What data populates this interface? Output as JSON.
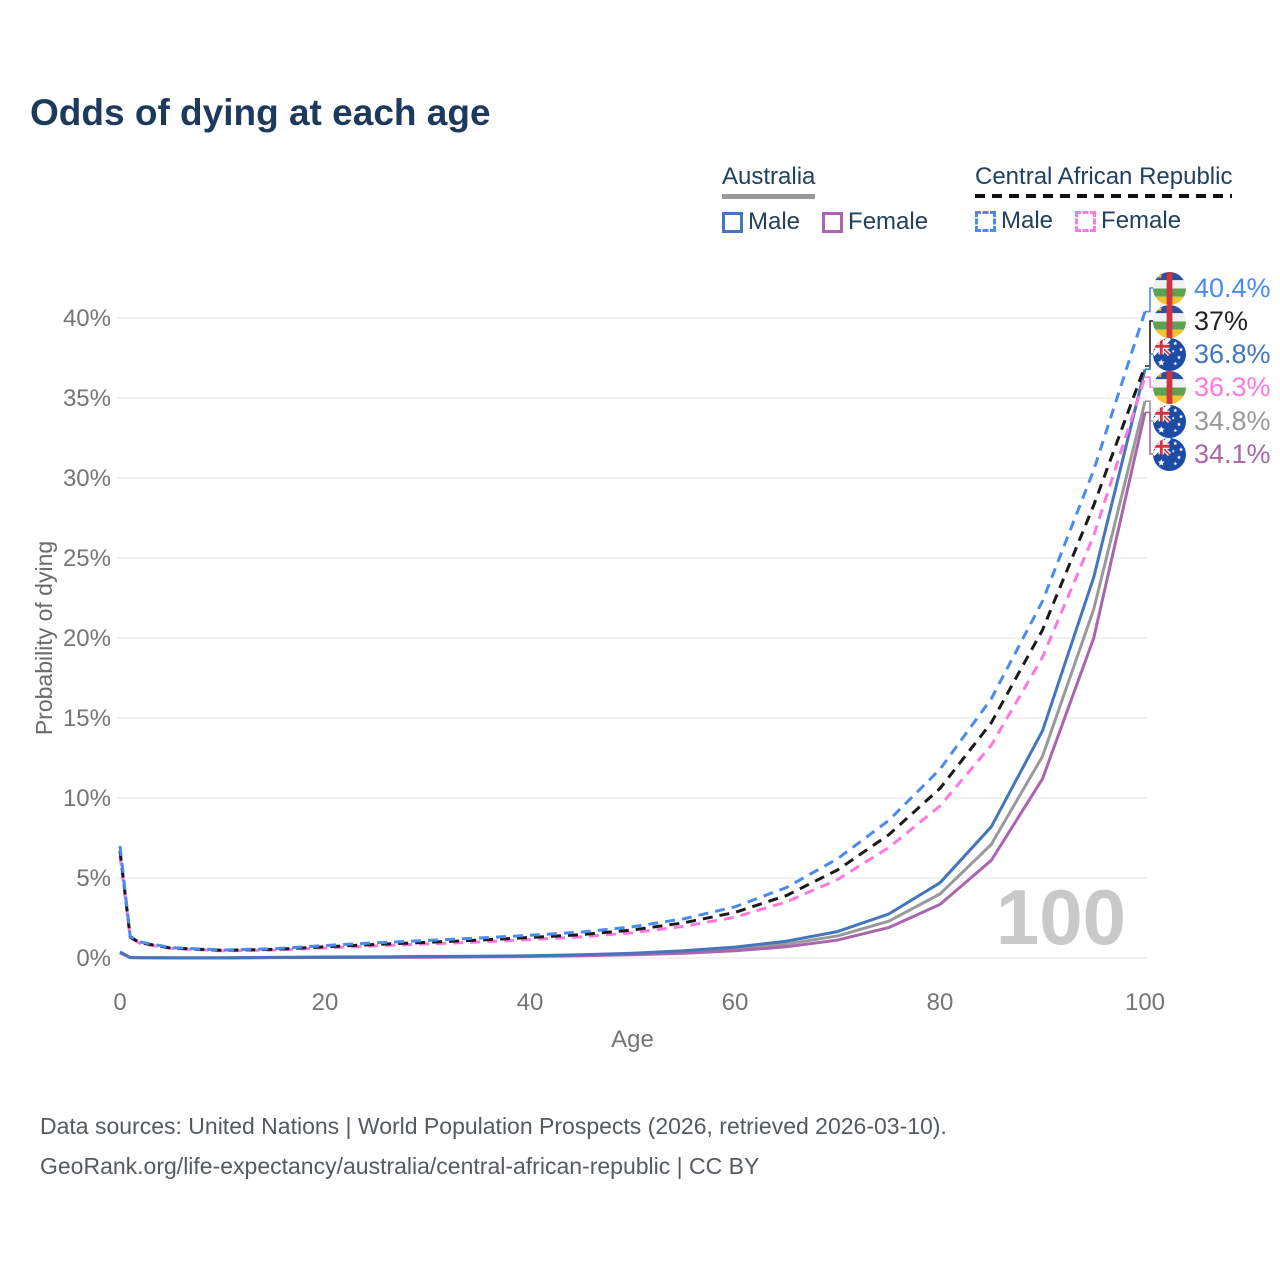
{
  "title": "Odds of dying at each age",
  "legend": {
    "groups": [
      {
        "label": "Australia",
        "underline_style": "solid",
        "underline_color": "#999999",
        "items": [
          {
            "label": "Male",
            "color": "#4376ba",
            "dash": false
          },
          {
            "label": "Female",
            "color": "#aa66ad",
            "dash": false
          }
        ]
      },
      {
        "label": "Central African Republic",
        "underline_style": "dashed",
        "underline_color": "#111111",
        "items": [
          {
            "label": "Male",
            "color": "#4a8bf0",
            "dash": true
          },
          {
            "label": "Female",
            "color": "#ff77e0",
            "dash": true
          }
        ]
      }
    ]
  },
  "chart_data": {
    "type": "line",
    "title": "Odds of dying at each age",
    "xlabel": "Age",
    "ylabel": "Probability of dying",
    "xlim": [
      0,
      100
    ],
    "ylim": [
      0,
      40
    ],
    "x_ticks": [
      0,
      20,
      40,
      60,
      80,
      100
    ],
    "y_ticks": [
      0,
      5,
      10,
      15,
      20,
      25,
      30,
      35,
      40
    ],
    "y_tick_suffix": "%",
    "grid": "horizontal",
    "legend_position": "top-right",
    "watermark": "100",
    "x": [
      0,
      1,
      2,
      5,
      10,
      15,
      20,
      25,
      30,
      35,
      40,
      45,
      50,
      55,
      60,
      65,
      70,
      75,
      80,
      85,
      90,
      95,
      100
    ],
    "series": [
      {
        "name": "Australia All",
        "key": "aus_all",
        "color": "#999999",
        "dash": false,
        "values": [
          0.35,
          0.025,
          0.018,
          0.01,
          0.01,
          0.03,
          0.05,
          0.06,
          0.07,
          0.09,
          0.12,
          0.17,
          0.25,
          0.38,
          0.56,
          0.87,
          1.38,
          2.3,
          4.0,
          7.1,
          12.6,
          21.8,
          34.8
        ]
      },
      {
        "name": "Australia Female",
        "key": "aus_female",
        "color": "#aa66ad",
        "dash": false,
        "values": [
          0.32,
          0.02,
          0.015,
          0.008,
          0.008,
          0.02,
          0.03,
          0.04,
          0.05,
          0.07,
          0.1,
          0.14,
          0.2,
          0.3,
          0.45,
          0.7,
          1.12,
          1.9,
          3.35,
          6.1,
          11.2,
          20.0,
          34.1
        ]
      },
      {
        "name": "Australia Male",
        "key": "aus_male",
        "color": "#4376ba",
        "dash": false,
        "values": [
          0.38,
          0.03,
          0.02,
          0.01,
          0.01,
          0.04,
          0.06,
          0.07,
          0.09,
          0.11,
          0.14,
          0.2,
          0.3,
          0.45,
          0.68,
          1.05,
          1.65,
          2.75,
          4.7,
          8.2,
          14.2,
          23.8,
          36.8
        ]
      },
      {
        "name": "Central African Republic Female",
        "key": "car_female",
        "color": "#ff77e0",
        "dash": true,
        "values": [
          6.4,
          1.25,
          0.9,
          0.6,
          0.45,
          0.5,
          0.63,
          0.76,
          0.88,
          1.0,
          1.15,
          1.32,
          1.58,
          1.98,
          2.55,
          3.5,
          4.9,
          6.9,
          9.5,
          13.3,
          18.8,
          26.4,
          36.3
        ]
      },
      {
        "name": "Central African Republic All",
        "key": "car_all",
        "color": "#1a1a1a",
        "dash": true,
        "values": [
          6.7,
          1.3,
          0.95,
          0.62,
          0.48,
          0.54,
          0.7,
          0.85,
          0.98,
          1.12,
          1.28,
          1.46,
          1.75,
          2.2,
          2.85,
          3.9,
          5.5,
          7.7,
          10.6,
          14.7,
          20.5,
          28.3,
          37.0
        ]
      },
      {
        "name": "Central African Republic Male",
        "key": "car_male",
        "color": "#4a8bf0",
        "dash": true,
        "values": [
          7.0,
          1.35,
          1.0,
          0.65,
          0.5,
          0.58,
          0.78,
          0.95,
          1.1,
          1.25,
          1.42,
          1.62,
          1.95,
          2.45,
          3.2,
          4.4,
          6.2,
          8.6,
          11.8,
          16.2,
          22.3,
          30.5,
          40.4
        ]
      }
    ],
    "end_labels": [
      {
        "series": "car_male",
        "value": "40.4%",
        "flag": "car-flag-icon",
        "color": "#4a8bf0"
      },
      {
        "series": "car_all",
        "value": "37%",
        "flag": "car-flag-icon",
        "color": "#222222"
      },
      {
        "series": "aus_male",
        "value": "36.8%",
        "flag": "aus-flag-icon",
        "color": "#4376ba"
      },
      {
        "series": "car_female",
        "value": "36.3%",
        "flag": "car-flag-icon",
        "color": "#ff77e0"
      },
      {
        "series": "aus_all",
        "value": "34.8%",
        "flag": "aus-flag-icon",
        "color": "#9a9a9a"
      },
      {
        "series": "aus_female",
        "value": "34.1%",
        "flag": "aus-flag-icon",
        "color": "#aa66ad"
      }
    ]
  },
  "footer": {
    "line1": "Data sources: United Nations | World Population Prospects (2026, retrieved 2026-03-10).",
    "line2": "GeoRank.org/life-expectancy/australia/central-african-republic | CC BY"
  }
}
